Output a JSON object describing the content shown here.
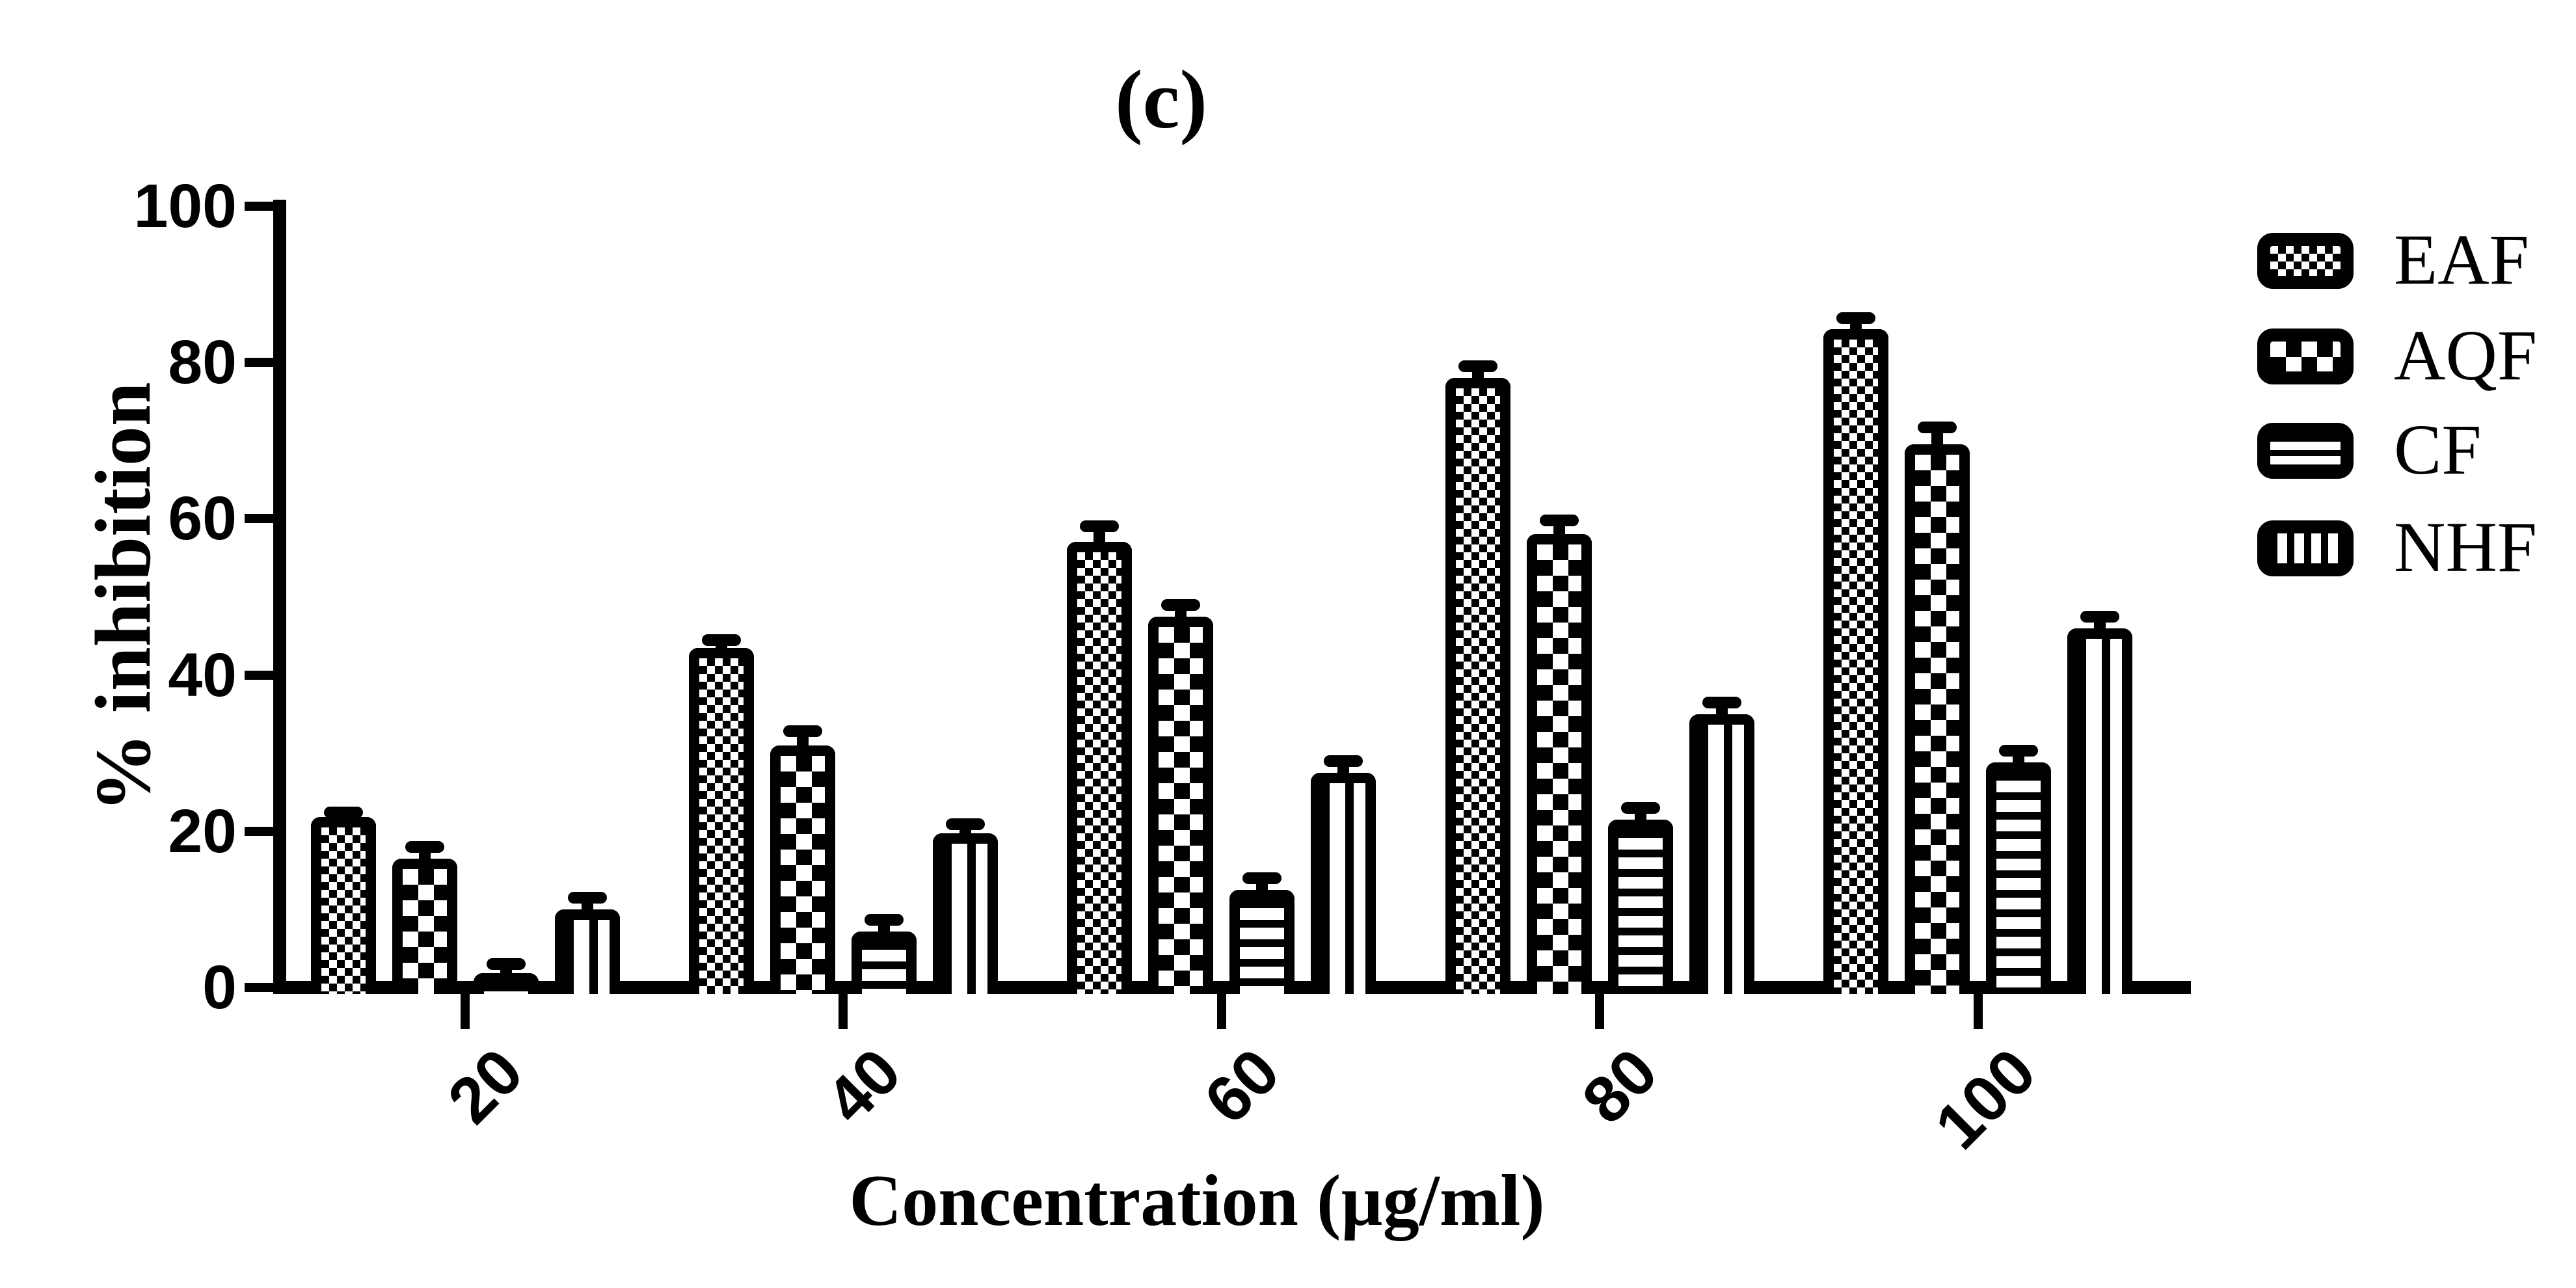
{
  "chart_data": {
    "type": "bar",
    "title": "(c)",
    "xlabel": "Concentration (µg/ml)",
    "ylabel": "% inhibition",
    "ylim": [
      0,
      100
    ],
    "y_ticks": [
      100,
      80,
      60,
      40,
      20,
      0
    ],
    "grid": false,
    "legend_position": "right",
    "categories": [
      "20",
      "40",
      "60",
      "80",
      "100"
    ],
    "series": [
      {
        "name": "EAF",
        "pattern": "fine-checker",
        "values": [
          21.8,
          43.5,
          57.0,
          78.0,
          84.3
        ],
        "errors": [
          0.6,
          1.0,
          2.0,
          1.5,
          1.4
        ]
      },
      {
        "name": "AQF",
        "pattern": "coarse-checker",
        "values": [
          16.5,
          31.0,
          47.5,
          58.0,
          69.5
        ],
        "errors": [
          1.5,
          1.8,
          1.5,
          1.8,
          2.2
        ]
      },
      {
        "name": "CF",
        "pattern": "horizontal-stripes",
        "values": [
          1.8,
          7.2,
          12.5,
          21.5,
          28.8
        ],
        "errors": [
          1.2,
          1.5,
          1.5,
          1.5,
          1.5
        ]
      },
      {
        "name": "NHF",
        "pattern": "vertical-stripes",
        "values": [
          10.0,
          19.7,
          27.5,
          35.0,
          46.0
        ],
        "errors": [
          1.5,
          1.2,
          1.5,
          1.5,
          1.5
        ]
      }
    ],
    "colors": {
      "foreground": "#000000",
      "background": "#ffffff"
    }
  }
}
